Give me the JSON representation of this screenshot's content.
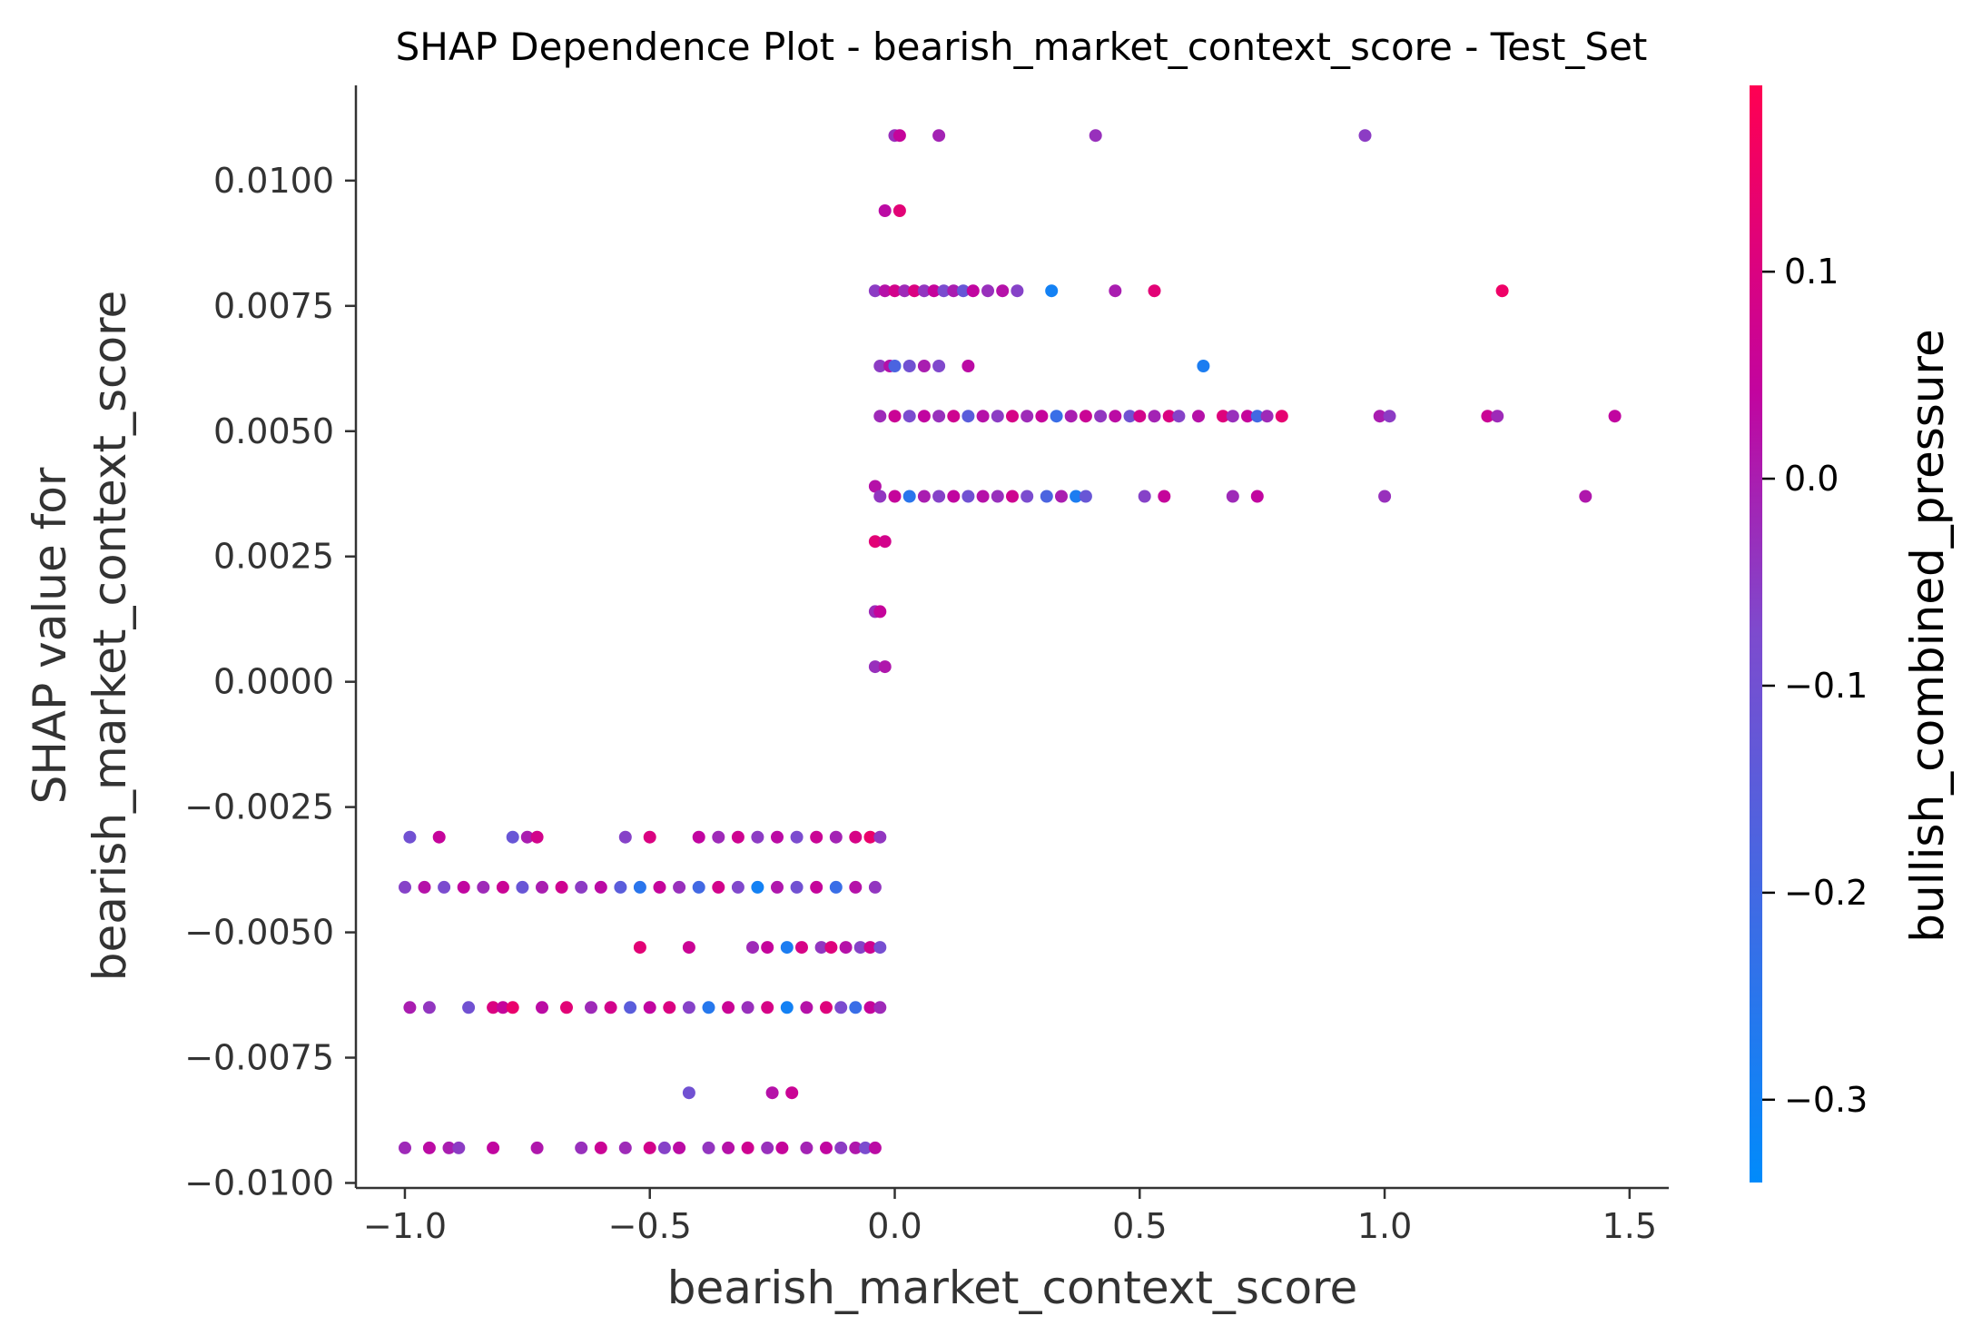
{
  "chart_data": {
    "type": "scatter",
    "title": "SHAP Dependence Plot - bearish_market_context_score - Test_Set",
    "xlabel": "bearish_market_context_score",
    "ylabel_lines": [
      "SHAP value for",
      "bearish_market_context_score"
    ],
    "colorbar_label": "bullish_combined_pressure",
    "xlim": [
      -1.1,
      1.58
    ],
    "ylim": [
      -0.0101,
      0.0119
    ],
    "clim": [
      -0.34,
      0.19
    ],
    "xticks": [
      -1.0,
      -0.5,
      0.0,
      0.5,
      1.0,
      1.5
    ],
    "xtick_labels": [
      "−1.0",
      "−0.5",
      "0.0",
      "0.5",
      "1.0",
      "1.5"
    ],
    "yticks": [
      0.01,
      0.0075,
      0.005,
      0.0025,
      0.0,
      -0.0025,
      -0.005,
      -0.0075,
      -0.01
    ],
    "ytick_labels": [
      "0.0100",
      "0.0075",
      "0.0050",
      "0.0025",
      "0.0000",
      "−0.0025",
      "−0.0050",
      "−0.0075",
      "−0.0100"
    ],
    "cticks": [
      0.1,
      0.0,
      -0.1,
      -0.2,
      -0.3
    ],
    "ctick_labels": [
      "0.1",
      "0.0",
      "−0.1",
      "−0.2",
      "−0.3"
    ],
    "colormap": [
      "#008bfb",
      "#ff0052"
    ],
    "points": [
      [
        0.0,
        0.0109,
        -0.03
      ],
      [
        0.01,
        0.0109,
        0.05
      ],
      [
        0.09,
        0.0109,
        -0.01
      ],
      [
        0.41,
        0.0109,
        -0.03
      ],
      [
        0.96,
        0.0109,
        -0.05
      ],
      [
        -0.02,
        0.0094,
        0.03
      ],
      [
        0.01,
        0.0094,
        0.12
      ],
      [
        -0.04,
        0.0078,
        -0.05
      ],
      [
        -0.02,
        0.0078,
        0.02
      ],
      [
        0.0,
        0.0078,
        0.08
      ],
      [
        0.02,
        0.0078,
        -0.02
      ],
      [
        0.04,
        0.0078,
        0.1
      ],
      [
        0.06,
        0.0078,
        -0.04
      ],
      [
        0.08,
        0.0078,
        0.05
      ],
      [
        0.1,
        0.0078,
        -0.08
      ],
      [
        0.12,
        0.0078,
        0.0
      ],
      [
        0.14,
        0.0078,
        -0.12
      ],
      [
        0.16,
        0.0078,
        0.04
      ],
      [
        0.19,
        0.0078,
        -0.03
      ],
      [
        0.22,
        0.0078,
        0.02
      ],
      [
        0.25,
        0.0078,
        -0.06
      ],
      [
        0.32,
        0.0078,
        -0.3
      ],
      [
        0.45,
        0.0078,
        0.0
      ],
      [
        0.53,
        0.0078,
        0.12
      ],
      [
        1.24,
        0.0078,
        0.15
      ],
      [
        -0.03,
        0.0063,
        -0.05
      ],
      [
        -0.01,
        0.0063,
        0.02
      ],
      [
        0.0,
        0.0063,
        -0.18
      ],
      [
        0.03,
        0.0063,
        -0.1
      ],
      [
        0.06,
        0.0063,
        0.0
      ],
      [
        0.09,
        0.0063,
        -0.07
      ],
      [
        0.15,
        0.0063,
        0.03
      ],
      [
        0.63,
        0.0063,
        -0.28
      ],
      [
        -0.03,
        0.0053,
        -0.02
      ],
      [
        0.0,
        0.0053,
        0.06
      ],
      [
        0.03,
        0.0053,
        -0.08
      ],
      [
        0.06,
        0.0053,
        0.04
      ],
      [
        0.09,
        0.0053,
        -0.03
      ],
      [
        0.12,
        0.0053,
        0.07
      ],
      [
        0.15,
        0.0053,
        -0.15
      ],
      [
        0.18,
        0.0053,
        0.02
      ],
      [
        0.21,
        0.0053,
        -0.05
      ],
      [
        0.24,
        0.0053,
        0.09
      ],
      [
        0.27,
        0.0053,
        -0.02
      ],
      [
        0.3,
        0.0053,
        0.05
      ],
      [
        0.33,
        0.0053,
        -0.22
      ],
      [
        0.36,
        0.0053,
        0.0
      ],
      [
        0.39,
        0.0053,
        0.06
      ],
      [
        0.42,
        0.0053,
        -0.04
      ],
      [
        0.45,
        0.0053,
        0.03
      ],
      [
        0.48,
        0.0053,
        -0.1
      ],
      [
        0.5,
        0.0053,
        0.08
      ],
      [
        0.53,
        0.0053,
        -0.01
      ],
      [
        0.56,
        0.0053,
        0.1
      ],
      [
        0.58,
        0.0053,
        -0.06
      ],
      [
        0.62,
        0.0053,
        0.02
      ],
      [
        0.67,
        0.0053,
        0.11
      ],
      [
        0.69,
        0.0053,
        -0.03
      ],
      [
        0.72,
        0.0053,
        0.05
      ],
      [
        0.74,
        0.0053,
        -0.2
      ],
      [
        0.76,
        0.0053,
        -0.02
      ],
      [
        0.79,
        0.0053,
        0.13
      ],
      [
        0.99,
        0.0053,
        0.0
      ],
      [
        1.01,
        0.0053,
        -0.05
      ],
      [
        1.21,
        0.0053,
        0.06
      ],
      [
        1.23,
        0.0053,
        -0.02
      ],
      [
        1.47,
        0.0053,
        0.04
      ],
      [
        -0.04,
        0.0039,
        0.02
      ],
      [
        -0.03,
        0.0037,
        -0.04
      ],
      [
        0.0,
        0.0037,
        0.05
      ],
      [
        0.03,
        0.0037,
        -0.25
      ],
      [
        0.06,
        0.0037,
        0.0
      ],
      [
        0.09,
        0.0037,
        -0.06
      ],
      [
        0.12,
        0.0037,
        0.04
      ],
      [
        0.15,
        0.0037,
        -0.1
      ],
      [
        0.18,
        0.0037,
        0.02
      ],
      [
        0.21,
        0.0037,
        -0.03
      ],
      [
        0.24,
        0.0037,
        0.07
      ],
      [
        0.27,
        0.0037,
        -0.08
      ],
      [
        0.31,
        0.0037,
        -0.18
      ],
      [
        0.34,
        0.0037,
        0.0
      ],
      [
        0.37,
        0.0037,
        -0.28
      ],
      [
        0.39,
        0.0037,
        -0.12
      ],
      [
        0.51,
        0.0037,
        -0.06
      ],
      [
        0.55,
        0.0037,
        0.05
      ],
      [
        0.69,
        0.0037,
        -0.02
      ],
      [
        0.74,
        0.0037,
        0.04
      ],
      [
        1.0,
        0.0037,
        -0.03
      ],
      [
        1.41,
        0.0037,
        0.01
      ],
      [
        -0.04,
        0.0028,
        0.12
      ],
      [
        -0.02,
        0.0028,
        0.08
      ],
      [
        -0.04,
        0.0014,
        -0.02
      ],
      [
        -0.03,
        0.0014,
        0.05
      ],
      [
        -0.04,
        0.0003,
        -0.03
      ],
      [
        -0.02,
        0.0003,
        0.01
      ],
      [
        -0.99,
        -0.0031,
        -0.1
      ],
      [
        -0.93,
        -0.0031,
        0.05
      ],
      [
        -0.78,
        -0.0031,
        -0.12
      ],
      [
        -0.75,
        -0.0031,
        0.0
      ],
      [
        -0.73,
        -0.0031,
        0.08
      ],
      [
        -0.55,
        -0.0031,
        -0.06
      ],
      [
        -0.5,
        -0.0031,
        0.1
      ],
      [
        -0.4,
        -0.0031,
        0.04
      ],
      [
        -0.36,
        -0.0031,
        -0.02
      ],
      [
        -0.32,
        -0.0031,
        0.07
      ],
      [
        -0.28,
        -0.0031,
        -0.05
      ],
      [
        -0.24,
        -0.0031,
        0.03
      ],
      [
        -0.2,
        -0.0031,
        -0.08
      ],
      [
        -0.16,
        -0.0031,
        0.06
      ],
      [
        -0.12,
        -0.0031,
        -0.01
      ],
      [
        -0.08,
        -0.0031,
        0.09
      ],
      [
        -0.05,
        -0.0031,
        0.14
      ],
      [
        -0.03,
        -0.0031,
        -0.04
      ],
      [
        -1.0,
        -0.0041,
        -0.06
      ],
      [
        -0.96,
        -0.0041,
        0.02
      ],
      [
        -0.92,
        -0.0041,
        -0.08
      ],
      [
        -0.88,
        -0.0041,
        0.04
      ],
      [
        -0.84,
        -0.0041,
        -0.02
      ],
      [
        -0.8,
        -0.0041,
        0.06
      ],
      [
        -0.76,
        -0.0041,
        -0.12
      ],
      [
        -0.72,
        -0.0041,
        0.0
      ],
      [
        -0.68,
        -0.0041,
        0.07
      ],
      [
        -0.64,
        -0.0041,
        -0.05
      ],
      [
        -0.6,
        -0.0041,
        0.03
      ],
      [
        -0.56,
        -0.0041,
        -0.15
      ],
      [
        -0.52,
        -0.0041,
        -0.25
      ],
      [
        -0.48,
        -0.0041,
        0.05
      ],
      [
        -0.44,
        -0.0041,
        -0.03
      ],
      [
        -0.4,
        -0.0041,
        -0.2
      ],
      [
        -0.36,
        -0.0041,
        0.08
      ],
      [
        -0.32,
        -0.0041,
        -0.07
      ],
      [
        -0.28,
        -0.0041,
        -0.3
      ],
      [
        -0.24,
        -0.0041,
        0.01
      ],
      [
        -0.2,
        -0.0041,
        -0.1
      ],
      [
        -0.16,
        -0.0041,
        0.05
      ],
      [
        -0.12,
        -0.0041,
        -0.22
      ],
      [
        -0.08,
        -0.0041,
        0.02
      ],
      [
        -0.04,
        -0.0041,
        -0.04
      ],
      [
        -0.52,
        -0.0053,
        0.12
      ],
      [
        -0.42,
        -0.0053,
        0.06
      ],
      [
        -0.29,
        -0.0053,
        -0.02
      ],
      [
        -0.26,
        -0.0053,
        0.05
      ],
      [
        -0.22,
        -0.0053,
        -0.28
      ],
      [
        -0.19,
        -0.0053,
        0.09
      ],
      [
        -0.15,
        -0.0053,
        -0.04
      ],
      [
        -0.13,
        -0.0053,
        0.11
      ],
      [
        -0.1,
        -0.0053,
        0.02
      ],
      [
        -0.07,
        -0.0053,
        -0.06
      ],
      [
        -0.05,
        -0.0053,
        0.07
      ],
      [
        -0.03,
        -0.0053,
        -0.09
      ],
      [
        -0.99,
        -0.0065,
        0.0
      ],
      [
        -0.95,
        -0.0065,
        -0.04
      ],
      [
        -0.87,
        -0.0065,
        -0.1
      ],
      [
        -0.82,
        -0.0065,
        0.1
      ],
      [
        -0.8,
        -0.0065,
        0.05
      ],
      [
        -0.78,
        -0.0065,
        0.14
      ],
      [
        -0.72,
        -0.0065,
        0.03
      ],
      [
        -0.67,
        -0.0065,
        0.12
      ],
      [
        -0.62,
        -0.0065,
        -0.02
      ],
      [
        -0.58,
        -0.0065,
        0.08
      ],
      [
        -0.54,
        -0.0065,
        -0.15
      ],
      [
        -0.5,
        -0.0065,
        0.04
      ],
      [
        -0.46,
        -0.0065,
        0.1
      ],
      [
        -0.42,
        -0.0065,
        -0.06
      ],
      [
        -0.38,
        -0.0065,
        -0.26
      ],
      [
        -0.34,
        -0.0065,
        0.06
      ],
      [
        -0.3,
        -0.0065,
        -0.03
      ],
      [
        -0.26,
        -0.0065,
        0.09
      ],
      [
        -0.22,
        -0.0065,
        -0.3
      ],
      [
        -0.18,
        -0.0065,
        0.02
      ],
      [
        -0.14,
        -0.0065,
        0.11
      ],
      [
        -0.11,
        -0.0065,
        -0.08
      ],
      [
        -0.08,
        -0.0065,
        -0.22
      ],
      [
        -0.05,
        -0.0065,
        0.05
      ],
      [
        -0.03,
        -0.0065,
        -0.02
      ],
      [
        -0.42,
        -0.0082,
        -0.1
      ],
      [
        -0.25,
        -0.0082,
        0.02
      ],
      [
        -0.21,
        -0.0082,
        0.06
      ],
      [
        -1.0,
        -0.0093,
        -0.02
      ],
      [
        -0.95,
        -0.0093,
        0.03
      ],
      [
        -0.91,
        -0.0093,
        0.0
      ],
      [
        -0.89,
        -0.0093,
        -0.05
      ],
      [
        -0.82,
        -0.0093,
        0.04
      ],
      [
        -0.73,
        -0.0093,
        0.01
      ],
      [
        -0.64,
        -0.0093,
        -0.03
      ],
      [
        -0.6,
        -0.0093,
        0.06
      ],
      [
        -0.55,
        -0.0093,
        -0.02
      ],
      [
        -0.5,
        -0.0093,
        0.08
      ],
      [
        -0.47,
        -0.0093,
        -0.06
      ],
      [
        -0.44,
        -0.0093,
        0.03
      ],
      [
        -0.38,
        -0.0093,
        -0.04
      ],
      [
        -0.34,
        -0.0093,
        0.02
      ],
      [
        -0.3,
        -0.0093,
        0.07
      ],
      [
        -0.26,
        -0.0093,
        -0.03
      ],
      [
        -0.23,
        -0.0093,
        0.05
      ],
      [
        -0.18,
        -0.0093,
        -0.01
      ],
      [
        -0.14,
        -0.0093,
        0.04
      ],
      [
        -0.11,
        -0.0093,
        -0.05
      ],
      [
        -0.08,
        -0.0093,
        0.01
      ],
      [
        -0.06,
        -0.0093,
        -0.08
      ],
      [
        -0.04,
        -0.0093,
        0.03
      ]
    ]
  }
}
